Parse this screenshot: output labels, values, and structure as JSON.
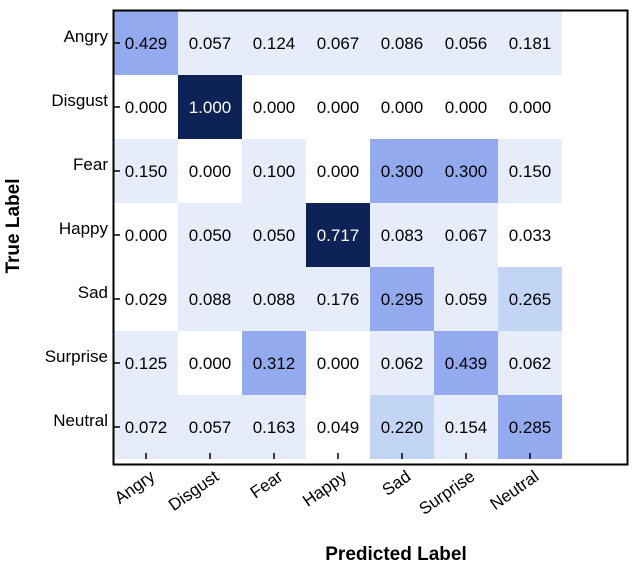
{
  "chart_data": {
    "type": "heatmap",
    "xlabel": "Predicted Label",
    "ylabel": "True Label",
    "x_categories": [
      "Angry",
      "Disgust",
      "Fear",
      "Happy",
      "Sad",
      "Surprise",
      "Neutral"
    ],
    "y_categories": [
      "Angry",
      "Disgust",
      "Fear",
      "Happy",
      "Sad",
      "Surprise",
      "Neutral"
    ],
    "values": [
      [
        0.429,
        0.057,
        0.124,
        0.067,
        0.086,
        0.056,
        0.181
      ],
      [
        0.0,
        1.0,
        0.0,
        0.0,
        0.0,
        0.0,
        0.0
      ],
      [
        0.15,
        0.0,
        0.1,
        0.0,
        0.3,
        0.3,
        0.15
      ],
      [
        0.0,
        0.05,
        0.05,
        0.717,
        0.083,
        0.067,
        0.033
      ],
      [
        0.029,
        0.088,
        0.088,
        0.176,
        0.295,
        0.059,
        0.265
      ],
      [
        0.125,
        0.0,
        0.312,
        0.0,
        0.062,
        0.439,
        0.062
      ],
      [
        0.072,
        0.057,
        0.163,
        0.049,
        0.22,
        0.154,
        0.285
      ]
    ],
    "value_labels": [
      [
        "0.429",
        "0.057",
        "0.124",
        "0.067",
        "0.086",
        "0.056",
        "0.181"
      ],
      [
        "0.000",
        "1.000",
        "0.000",
        "0.000",
        "0.000",
        "0.000",
        "0.000"
      ],
      [
        "0.150",
        "0.000",
        "0.100",
        "0.000",
        "0.300",
        "0.300",
        "0.150"
      ],
      [
        "0.000",
        "0.050",
        "0.050",
        "0.717",
        "0.083",
        "0.067",
        "0.033"
      ],
      [
        "0.029",
        "0.088",
        "0.088",
        "0.176",
        "0.295",
        "0.059",
        "0.265"
      ],
      [
        "0.125",
        "0.000",
        "0.312",
        "0.000",
        "0.062",
        "0.439",
        "0.062"
      ],
      [
        "0.072",
        "0.057",
        "0.163",
        "0.049",
        "0.220",
        "0.154",
        "0.285"
      ]
    ],
    "colormap": [
      "#ffffff",
      "#e6ecf9",
      "#c3d5f5",
      "#93aaee",
      "#0d2257"
    ],
    "text_color_dark": "#000000",
    "text_color_light": "#ffffff",
    "frame_color": "#000000",
    "grid": false,
    "legend": "none"
  }
}
